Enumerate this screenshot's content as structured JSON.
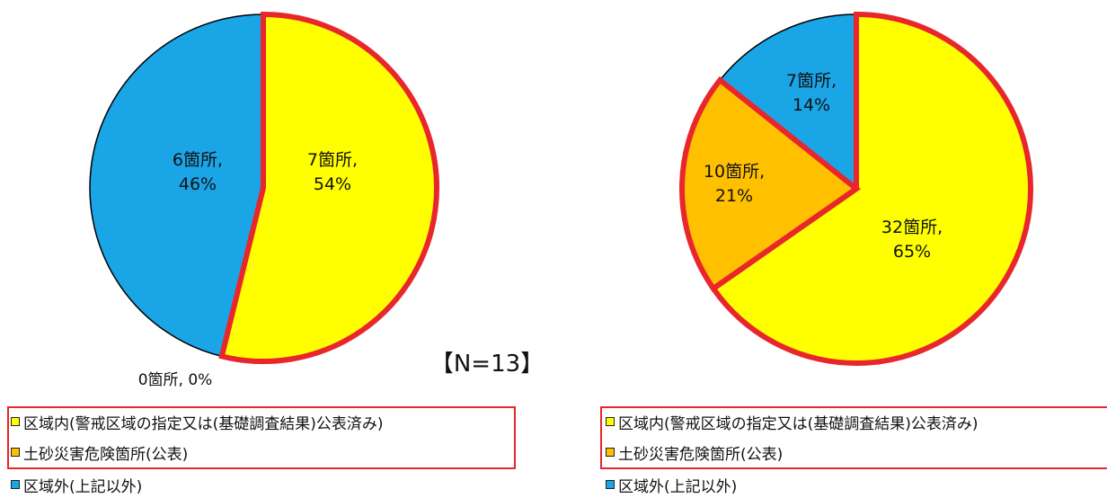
{
  "chart_data": [
    {
      "type": "pie",
      "slices": [
        {
          "label": "7箇所,",
          "pct_label": "54%",
          "value": 7,
          "percent": 54,
          "color": "#ffff00",
          "highlight": true
        },
        {
          "label": "0箇所, 0%",
          "pct_label": "",
          "value": 0,
          "percent": 0,
          "color": "#ffc000",
          "highlight": true
        },
        {
          "label": "6箇所,",
          "pct_label": "46%",
          "value": 6,
          "percent": 46,
          "color": "#1aa5e6",
          "highlight": false
        }
      ],
      "annotation": "【N=13】",
      "legend": {
        "placement": "bottom",
        "items": [
          {
            "label": "区域内(警戒区域の指定又は(基礎調査結果)公表済み)",
            "color": "#ffff00"
          },
          {
            "label": "土砂災害危険箇所(公表)",
            "color": "#ffc000"
          },
          {
            "label": "区域外(上記以外)",
            "color": "#1aa5e6"
          }
        ]
      }
    },
    {
      "type": "pie",
      "slices": [
        {
          "label": "32箇所,",
          "pct_label": "65%",
          "value": 32,
          "percent": 65,
          "color": "#ffff00",
          "highlight": true
        },
        {
          "label": "10箇所,",
          "pct_label": "21%",
          "value": 10,
          "percent": 21,
          "color": "#ffc000",
          "highlight": true
        },
        {
          "label": "7箇所,",
          "pct_label": "14%",
          "value": 7,
          "percent": 14,
          "color": "#1aa5e6",
          "highlight": false
        }
      ],
      "legend": {
        "placement": "bottom",
        "items": [
          {
            "label": "区域内(警戒区域の指定又は(基礎調査結果)公表済み)",
            "color": "#ffff00"
          },
          {
            "label": "土砂災害危険箇所(公表)",
            "color": "#ffc000"
          },
          {
            "label": "区域外(上記以外)",
            "color": "#1aa5e6"
          }
        ]
      }
    }
  ],
  "colors": {
    "highlight_border": "#e8262b",
    "slice_border": "#000000"
  }
}
